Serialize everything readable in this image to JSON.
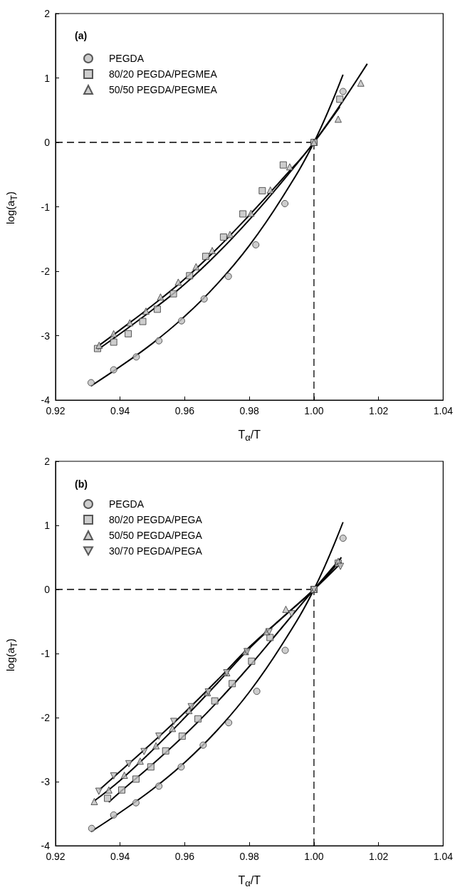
{
  "chart_data": [
    {
      "type": "scatter",
      "title": "(a)",
      "xlabel": "T$_{α}$/T",
      "ylabel": "log(a$_{T}$)",
      "legend": "top left",
      "grid": false,
      "xlim": [
        0.92,
        1.04
      ],
      "xticks": [
        {
          "value": 0.92,
          "label": "0.92"
        },
        {
          "value": 0.94,
          "label": "0.94"
        },
        {
          "value": 0.96,
          "label": "0.96"
        },
        {
          "value": 0.98,
          "label": "0.98"
        },
        {
          "value": 1.0,
          "label": "1.00"
        },
        {
          "value": 1.02,
          "label": "1.02"
        },
        {
          "value": 1.04,
          "label": "1.04"
        }
      ],
      "ylim": [
        -4,
        2
      ],
      "yticks": [
        -4,
        -3,
        -2,
        -1,
        0,
        1,
        2
      ],
      "ref_lines": [
        {
          "axis": "y",
          "value": 0,
          "line_style": "dashed",
          "color": "#000000"
        },
        {
          "axis": "x",
          "value": 1.0,
          "line_style": "dashed",
          "color": "#000000"
        }
      ],
      "series": [
        {
          "name": "PEGDA",
          "marker": "circle",
          "color": "#c0c0c0",
          "x": [
            0.931,
            0.938,
            0.945,
            0.952,
            0.959,
            0.966,
            0.9735,
            0.982,
            0.991,
            1.0,
            1.009
          ],
          "values": [
            -3.73,
            -3.53,
            -3.33,
            -3.08,
            -2.77,
            -2.43,
            -2.08,
            -1.59,
            -0.95,
            0,
            0.79
          ]
        },
        {
          "name": "80/20 PEGDA/PEGMEA",
          "marker": "square",
          "color": "#c0c0c0",
          "x": [
            0.933,
            0.938,
            0.9425,
            0.947,
            0.9515,
            0.9565,
            0.9615,
            0.9665,
            0.972,
            0.978,
            0.984,
            0.9905,
            1.0,
            1.008
          ],
          "values": [
            -3.2,
            -3.1,
            -2.97,
            -2.78,
            -2.59,
            -2.35,
            -2.07,
            -1.77,
            -1.47,
            -1.11,
            -0.75,
            -0.35,
            0,
            0.67
          ]
        },
        {
          "name": "50/50 PEGDA/PEGMEA",
          "marker": "triangle",
          "color": "#c0c0c0",
          "x": [
            0.9335,
            0.938,
            0.943,
            0.948,
            0.9525,
            0.958,
            0.9635,
            0.9685,
            0.974,
            0.9805,
            0.9865,
            0.9925,
            1.0,
            1.0075,
            1.0145
          ],
          "values": [
            -3.15,
            -2.97,
            -2.8,
            -2.62,
            -2.4,
            -2.17,
            -1.93,
            -1.68,
            -1.43,
            -1.1,
            -0.74,
            -0.38,
            0,
            0.36,
            0.92
          ]
        },
        {
          "type": "line",
          "marker": "none",
          "color": "#000000",
          "x": [
            0.931,
            0.94,
            0.95,
            0.96,
            0.97,
            0.98,
            0.99,
            1.0,
            1.009
          ],
          "values": [
            -3.78,
            -3.48,
            -3.12,
            -2.7,
            -2.2,
            -1.6,
            -0.87,
            0,
            1.05
          ]
        },
        {
          "type": "line",
          "marker": "none",
          "color": "#000000",
          "x": [
            0.933,
            0.94,
            0.95,
            0.96,
            0.97,
            0.98,
            0.99,
            1.0,
            1.008
          ],
          "values": [
            -3.22,
            -2.97,
            -2.6,
            -2.2,
            -1.73,
            -1.2,
            -0.62,
            0,
            0.55
          ]
        },
        {
          "type": "line",
          "marker": "none",
          "color": "#000000",
          "x": [
            0.9335,
            0.94,
            0.95,
            0.96,
            0.97,
            0.98,
            0.99,
            1.0,
            1.0165
          ],
          "values": [
            -3.15,
            -2.91,
            -2.53,
            -2.12,
            -1.65,
            -1.13,
            -0.58,
            0,
            1.22
          ]
        }
      ]
    },
    {
      "type": "scatter",
      "title": "(b)",
      "xlabel": "T$_{α}$/T",
      "ylabel": "log(a$_{T}$)",
      "legend": "top left",
      "grid": false,
      "xlim": [
        0.92,
        1.04
      ],
      "xticks": [
        {
          "value": 0.92,
          "label": "0.92"
        },
        {
          "value": 0.94,
          "label": "0.94"
        },
        {
          "value": 0.96,
          "label": "0.96"
        },
        {
          "value": 0.98,
          "label": "0.98"
        },
        {
          "value": 1.0,
          "label": "1.00"
        },
        {
          "value": 1.02,
          "label": "1.02"
        },
        {
          "value": 1.04,
          "label": "1.04"
        }
      ],
      "ylim": [
        -4,
        2
      ],
      "yticks": [
        -4,
        -3,
        -2,
        -1,
        0,
        1,
        2
      ],
      "ref_lines": [
        {
          "axis": "y",
          "value": 0,
          "line_style": "dashed",
          "color": "#000000"
        },
        {
          "axis": "x",
          "value": 1.0,
          "line_style": "dashed",
          "color": "#000000"
        }
      ],
      "series": [
        {
          "name": "PEGDA",
          "marker": "circle",
          "color": "#c0c0c0",
          "x": [
            0.9312,
            0.938,
            0.9449,
            0.952,
            0.9589,
            0.9657,
            0.9736,
            0.9823,
            0.9911,
            1.0,
            1.009
          ],
          "values": [
            -3.73,
            -3.52,
            -3.33,
            -3.07,
            -2.77,
            -2.43,
            -2.08,
            -1.59,
            -0.95,
            0,
            0.8
          ]
        },
        {
          "name": "80/20 PEGDA/PEGA",
          "marker": "square",
          "color": "#c0c0c0",
          "x": [
            0.9361,
            0.9405,
            0.9449,
            0.9495,
            0.9541,
            0.9592,
            0.9641,
            0.9693,
            0.9747,
            0.9807,
            0.9864,
            1.0,
            1.0075
          ],
          "values": [
            -3.26,
            -3.13,
            -2.96,
            -2.77,
            -2.52,
            -2.29,
            -2.02,
            -1.74,
            -1.47,
            -1.12,
            -0.75,
            0,
            0.41
          ]
        },
        {
          "name": "50/50 PEGDA/PEGA",
          "marker": "triangle",
          "color": "#c0c0c0",
          "x": [
            0.932,
            0.9365,
            0.9413,
            0.9462,
            0.9511,
            0.9562,
            0.9613,
            0.967,
            0.973,
            0.9788,
            0.9853,
            0.9913,
            1.0,
            1.0075
          ],
          "values": [
            -3.31,
            -3.13,
            -2.9,
            -2.68,
            -2.44,
            -2.17,
            -1.89,
            -1.61,
            -1.3,
            -0.97,
            -0.66,
            -0.31,
            0,
            0.44
          ]
        },
        {
          "name": "30/70 PEGDA/PEGA",
          "marker": "triangle-down",
          "color": "#c0c0c0",
          "x": [
            0.9334,
            0.938,
            0.9427,
            0.9474,
            0.952,
            0.9566,
            0.962,
            0.9673,
            0.973,
            0.9793,
            0.9861,
            0.9931,
            1.0,
            1.0082
          ],
          "values": [
            -3.15,
            -2.91,
            -2.72,
            -2.53,
            -2.29,
            -2.06,
            -1.83,
            -1.6,
            -1.3,
            -0.97,
            -0.66,
            -0.38,
            0,
            0.36
          ]
        },
        {
          "type": "line",
          "marker": "none",
          "color": "#000000",
          "x": [
            0.931,
            0.94,
            0.95,
            0.96,
            0.97,
            0.98,
            0.99,
            1.0,
            1.009
          ],
          "values": [
            -3.78,
            -3.48,
            -3.12,
            -2.7,
            -2.2,
            -1.6,
            -0.87,
            0,
            1.05
          ]
        },
        {
          "type": "line",
          "marker": "none",
          "color": "#000000",
          "x": [
            0.9365,
            0.94,
            0.95,
            0.96,
            0.97,
            0.98,
            0.99,
            1.0,
            1.0085
          ],
          "values": [
            -3.32,
            -3.16,
            -2.73,
            -2.27,
            -1.76,
            -1.2,
            -0.6,
            0,
            0.5
          ]
        },
        {
          "type": "line",
          "marker": "none",
          "color": "#000000",
          "x": [
            0.932,
            0.94,
            0.95,
            0.96,
            0.97,
            0.98,
            0.99,
            1.0,
            1.008
          ],
          "values": [
            -3.3,
            -2.98,
            -2.51,
            -2.0,
            -1.47,
            -0.92,
            -0.45,
            0,
            0.45
          ]
        },
        {
          "type": "line",
          "marker": "none",
          "color": "#000000",
          "x": [
            0.9335,
            0.94,
            0.95,
            0.96,
            0.97,
            0.98,
            0.99,
            1.0,
            1.0085
          ],
          "values": [
            -3.13,
            -2.84,
            -2.39,
            -1.92,
            -1.42,
            -0.9,
            -0.45,
            0,
            0.42
          ]
        }
      ]
    }
  ]
}
